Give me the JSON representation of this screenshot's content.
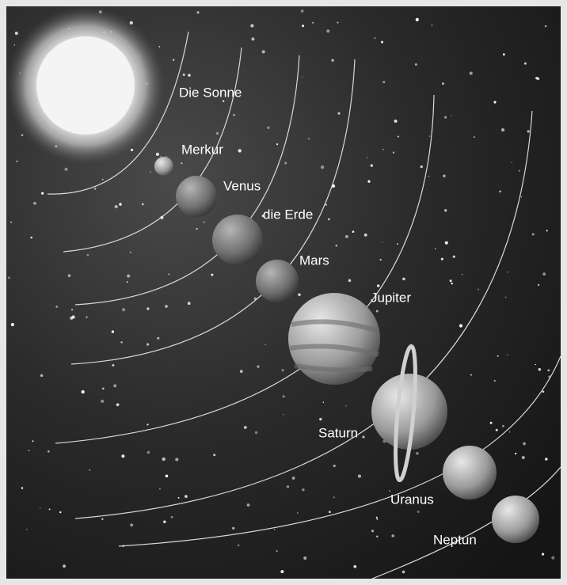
{
  "labels": [
    "Die Sonne",
    "Merkur",
    "Venus",
    "die Erde",
    "Mars",
    "Jupiter",
    "Saturn",
    "Uranus",
    "Neptun"
  ]
}
